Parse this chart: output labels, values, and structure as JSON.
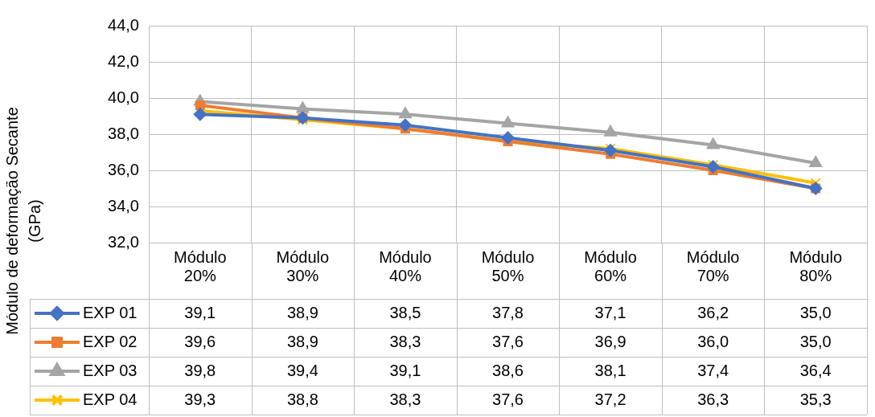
{
  "chart_data": {
    "type": "line",
    "ylabel": "Módulo de deformação Secante (GPa)",
    "categories": [
      "Módulo 20%",
      "Módulo 30%",
      "Módulo 40%",
      "Módulo 50%",
      "Módulo 60%",
      "Módulo 70%",
      "Módulo 80%"
    ],
    "series": [
      {
        "name": "EXP 01",
        "color": "#4472c4",
        "marker": "diamond",
        "values": [
          39.1,
          38.9,
          38.5,
          37.8,
          37.1,
          36.2,
          35.0
        ],
        "value_labels": [
          "39,1",
          "38,9",
          "38,5",
          "37,8",
          "37,1",
          "36,2",
          "35,0"
        ]
      },
      {
        "name": "EXP 02",
        "color": "#ed7d31",
        "marker": "square",
        "values": [
          39.6,
          38.9,
          38.3,
          37.6,
          36.9,
          36.0,
          35.0
        ],
        "value_labels": [
          "39,6",
          "38,9",
          "38,3",
          "37,6",
          "36,9",
          "36,0",
          "35,0"
        ]
      },
      {
        "name": "EXP 03",
        "color": "#a5a5a5",
        "marker": "triangle",
        "values": [
          39.8,
          39.4,
          39.1,
          38.6,
          38.1,
          37.4,
          36.4
        ],
        "value_labels": [
          "39,8",
          "39,4",
          "39,1",
          "38,6",
          "38,1",
          "37,4",
          "36,4"
        ]
      },
      {
        "name": "EXP 04",
        "color": "#ffc000",
        "marker": "cross",
        "values": [
          39.3,
          38.8,
          38.3,
          37.6,
          37.2,
          36.3,
          35.3
        ],
        "value_labels": [
          "39,3",
          "38,8",
          "38,3",
          "37,6",
          "37,2",
          "36,3",
          "35,3"
        ]
      }
    ],
    "ylim": [
      32,
      44
    ],
    "yticks": [
      {
        "value": 32,
        "label": "32,0"
      },
      {
        "value": 34,
        "label": "34,0"
      },
      {
        "value": 36,
        "label": "36,0"
      },
      {
        "value": 38,
        "label": "38,0"
      },
      {
        "value": 40,
        "label": "40,0"
      },
      {
        "value": 42,
        "label": "42,0"
      },
      {
        "value": 44,
        "label": "44,0"
      }
    ],
    "grid": true,
    "legend": "bottom"
  }
}
